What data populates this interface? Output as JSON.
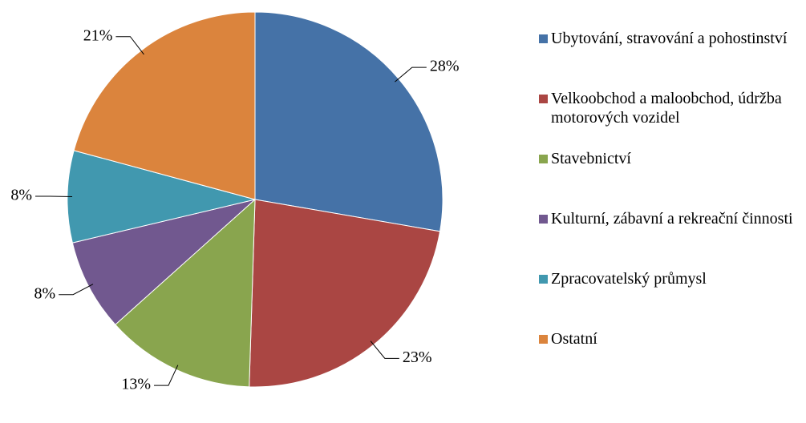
{
  "chart_data": {
    "type": "pie",
    "categories": [
      "Ubytování, stravování a pohostinství",
      "Velkoobchod a maloobchod, údržba motorových vozidel",
      "Stavebnictví",
      "Kulturní, zábavní a rekreační činnosti",
      "Zpracovatelský průmysl",
      "Ostatní"
    ],
    "values": [
      28,
      23,
      13,
      8,
      8,
      21
    ],
    "value_labels": [
      "28%",
      "23%",
      "13%",
      "8%",
      "8%",
      "21%"
    ],
    "colors": [
      "#4572a7",
      "#aa4643",
      "#89a54e",
      "#71588f",
      "#4198af",
      "#db843d"
    ],
    "legend": "right"
  }
}
